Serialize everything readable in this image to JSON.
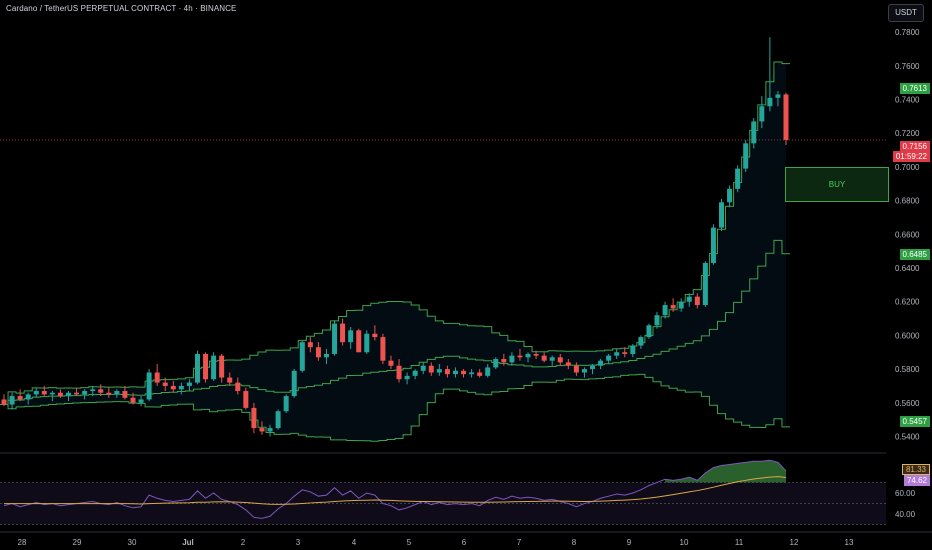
{
  "header": {
    "title": "Cardano / TetherUS PERPETUAL CONTRACT · 4h · BINANCE",
    "currency": "USDT"
  },
  "buy_label": "BUY",
  "price_tags": {
    "upper_band": "0.7613",
    "last_price": "0.7156",
    "countdown": "01:59:22",
    "middle_band": "0.6485",
    "lower_band": "0.5457",
    "rsi_value": "81.33",
    "rsi_ma": "74.62"
  },
  "colors": {
    "up": "#26a69a",
    "down": "#ef5350",
    "band": "#3fa34d",
    "rsi_line": "#7e57c2",
    "rsi_ma": "#d9a94b"
  },
  "chart_data": [
    {
      "type": "candlestick",
      "price_axis_ticks": [
        "0.7800",
        "0.7600",
        "0.7400",
        "0.7200",
        "0.7000",
        "0.6800",
        "0.6600",
        "0.6400",
        "0.6200",
        "0.6000",
        "0.5800",
        "0.5600",
        "0.5400"
      ],
      "ylim": [
        0.532,
        0.786
      ],
      "x_ticks": [
        "28",
        "29",
        "30",
        "Jul",
        "2",
        "3",
        "4",
        "5",
        "6",
        "7",
        "8",
        "9",
        "10",
        "11",
        "12",
        "13"
      ],
      "candles": [
        [
          0.562,
          0.565,
          0.558,
          0.559
        ],
        [
          0.559,
          0.566,
          0.556,
          0.564
        ],
        [
          0.564,
          0.568,
          0.561,
          0.562
        ],
        [
          0.562,
          0.566,
          0.559,
          0.565
        ],
        [
          0.565,
          0.569,
          0.563,
          0.567
        ],
        [
          0.567,
          0.57,
          0.564,
          0.565
        ],
        [
          0.565,
          0.567,
          0.561,
          0.566
        ],
        [
          0.566,
          0.568,
          0.563,
          0.564
        ],
        [
          0.564,
          0.567,
          0.561,
          0.566
        ],
        [
          0.566,
          0.569,
          0.564,
          0.565
        ],
        [
          0.565,
          0.568,
          0.562,
          0.567
        ],
        [
          0.567,
          0.57,
          0.564,
          0.568
        ],
        [
          0.568,
          0.571,
          0.564,
          0.566
        ],
        [
          0.566,
          0.569,
          0.563,
          0.565
        ],
        [
          0.565,
          0.568,
          0.563,
          0.567
        ],
        [
          0.567,
          0.57,
          0.562,
          0.563
        ],
        [
          0.563,
          0.566,
          0.559,
          0.56
        ],
        [
          0.56,
          0.564,
          0.558,
          0.562
        ],
        [
          0.562,
          0.58,
          0.561,
          0.578
        ],
        [
          0.578,
          0.583,
          0.57,
          0.572
        ],
        [
          0.572,
          0.575,
          0.567,
          0.57
        ],
        [
          0.57,
          0.573,
          0.566,
          0.568
        ],
        [
          0.568,
          0.572,
          0.565,
          0.57
        ],
        [
          0.57,
          0.574,
          0.567,
          0.572
        ],
        [
          0.572,
          0.591,
          0.571,
          0.589
        ],
        [
          0.589,
          0.59,
          0.572,
          0.574
        ],
        [
          0.574,
          0.59,
          0.573,
          0.588
        ],
        [
          0.588,
          0.589,
          0.572,
          0.575
        ],
        [
          0.575,
          0.578,
          0.57,
          0.572
        ],
        [
          0.572,
          0.575,
          0.565,
          0.567
        ],
        [
          0.567,
          0.569,
          0.556,
          0.557
        ],
        [
          0.557,
          0.56,
          0.542,
          0.545
        ],
        [
          0.545,
          0.549,
          0.541,
          0.543
        ],
        [
          0.543,
          0.547,
          0.54,
          0.545
        ],
        [
          0.545,
          0.556,
          0.544,
          0.555
        ],
        [
          0.555,
          0.565,
          0.554,
          0.564
        ],
        [
          0.564,
          0.58,
          0.563,
          0.579
        ],
        [
          0.579,
          0.597,
          0.578,
          0.596
        ],
        [
          0.596,
          0.599,
          0.59,
          0.593
        ],
        [
          0.593,
          0.596,
          0.585,
          0.587
        ],
        [
          0.587,
          0.592,
          0.583,
          0.589
        ],
        [
          0.589,
          0.609,
          0.588,
          0.607
        ],
        [
          0.607,
          0.61,
          0.594,
          0.596
        ],
        [
          0.596,
          0.605,
          0.592,
          0.603
        ],
        [
          0.603,
          0.604,
          0.59,
          0.59
        ],
        [
          0.59,
          0.603,
          0.589,
          0.601
        ],
        [
          0.601,
          0.606,
          0.597,
          0.599
        ],
        [
          0.599,
          0.601,
          0.583,
          0.585
        ],
        [
          0.585,
          0.588,
          0.58,
          0.582
        ],
        [
          0.582,
          0.586,
          0.572,
          0.574
        ],
        [
          0.574,
          0.578,
          0.571,
          0.576
        ],
        [
          0.576,
          0.58,
          0.574,
          0.579
        ],
        [
          0.579,
          0.584,
          0.577,
          0.582
        ],
        [
          0.582,
          0.584,
          0.576,
          0.578
        ],
        [
          0.578,
          0.583,
          0.576,
          0.58
        ],
        [
          0.58,
          0.582,
          0.575,
          0.577
        ],
        [
          0.577,
          0.581,
          0.575,
          0.579
        ],
        [
          0.579,
          0.58,
          0.575,
          0.577
        ],
        [
          0.577,
          0.58,
          0.575,
          0.578
        ],
        [
          0.578,
          0.58,
          0.575,
          0.576
        ],
        [
          0.576,
          0.583,
          0.575,
          0.581
        ],
        [
          0.581,
          0.587,
          0.58,
          0.586
        ],
        [
          0.586,
          0.589,
          0.582,
          0.584
        ],
        [
          0.584,
          0.59,
          0.582,
          0.588
        ],
        [
          0.588,
          0.592,
          0.585,
          0.587
        ],
        [
          0.587,
          0.59,
          0.584,
          0.589
        ],
        [
          0.589,
          0.591,
          0.586,
          0.588
        ],
        [
          0.588,
          0.59,
          0.584,
          0.585
        ],
        [
          0.585,
          0.588,
          0.582,
          0.587
        ],
        [
          0.587,
          0.589,
          0.582,
          0.584
        ],
        [
          0.584,
          0.586,
          0.58,
          0.582
        ],
        [
          0.582,
          0.584,
          0.576,
          0.578
        ],
        [
          0.578,
          0.581,
          0.575,
          0.58
        ],
        [
          0.58,
          0.583,
          0.577,
          0.582
        ],
        [
          0.582,
          0.586,
          0.58,
          0.585
        ],
        [
          0.585,
          0.589,
          0.583,
          0.588
        ],
        [
          0.588,
          0.592,
          0.586,
          0.59
        ],
        [
          0.59,
          0.593,
          0.587,
          0.589
        ],
        [
          0.589,
          0.595,
          0.587,
          0.594
        ],
        [
          0.594,
          0.6,
          0.592,
          0.599
        ],
        [
          0.599,
          0.607,
          0.598,
          0.606
        ],
        [
          0.606,
          0.614,
          0.604,
          0.612
        ],
        [
          0.612,
          0.62,
          0.61,
          0.618
        ],
        [
          0.618,
          0.622,
          0.614,
          0.616
        ],
        [
          0.616,
          0.622,
          0.614,
          0.62
        ],
        [
          0.62,
          0.625,
          0.617,
          0.623
        ],
        [
          0.623,
          0.625,
          0.616,
          0.618
        ],
        [
          0.618,
          0.644,
          0.617,
          0.643
        ],
        [
          0.643,
          0.666,
          0.642,
          0.664
        ],
        [
          0.664,
          0.681,
          0.662,
          0.679
        ],
        [
          0.679,
          0.689,
          0.676,
          0.687
        ],
        [
          0.687,
          0.701,
          0.685,
          0.699
        ],
        [
          0.699,
          0.716,
          0.697,
          0.714
        ],
        [
          0.714,
          0.729,
          0.711,
          0.727
        ],
        [
          0.727,
          0.742,
          0.723,
          0.736
        ],
        [
          0.736,
          0.777,
          0.733,
          0.741
        ],
        [
          0.741,
          0.745,
          0.736,
          0.743
        ],
        [
          0.743,
          0.744,
          0.713,
          0.716
        ]
      ],
      "bollinger_upper_end": 0.7613,
      "bollinger_middle_end": 0.6485,
      "bollinger_lower_end": 0.5457
    },
    {
      "type": "line",
      "name": "RSI",
      "ticks": [
        "60.00",
        "40.00"
      ],
      "ylim": [
        25,
        95
      ],
      "rsi": [
        48,
        50,
        47,
        49,
        51,
        49,
        50,
        48,
        49,
        50,
        51,
        52,
        50,
        49,
        51,
        48,
        46,
        47,
        58,
        55,
        53,
        52,
        53,
        54,
        62,
        55,
        60,
        54,
        52,
        49,
        44,
        37,
        36,
        38,
        45,
        50,
        57,
        63,
        61,
        57,
        58,
        65,
        58,
        62,
        55,
        60,
        58,
        50,
        48,
        44,
        46,
        49,
        52,
        49,
        51,
        49,
        50,
        49,
        50,
        48,
        53,
        56,
        54,
        57,
        55,
        56,
        55,
        53,
        54,
        52,
        50,
        47,
        50,
        52,
        55,
        57,
        59,
        58,
        60,
        63,
        67,
        70,
        73,
        72,
        73,
        75,
        72,
        79,
        84,
        86,
        87,
        88,
        89,
        90,
        90,
        91,
        89,
        81
      ],
      "rsi_ma": [
        50,
        50,
        50,
        50,
        50,
        50,
        50,
        50,
        50,
        50,
        50,
        50,
        50,
        50,
        50,
        50,
        49.8,
        49.6,
        50,
        50.2,
        50.4,
        50.5,
        50.6,
        50.8,
        51.2,
        51.3,
        51.6,
        51.7,
        51.6,
        51.4,
        51,
        50.4,
        49.8,
        49.4,
        49.2,
        49.3,
        49.6,
        50.1,
        50.6,
        51,
        51.4,
        52,
        52.4,
        52.8,
        53,
        53.2,
        53.4,
        53.2,
        53,
        52.6,
        52.3,
        52.1,
        52,
        51.8,
        51.7,
        51.6,
        51.5,
        51.4,
        51.3,
        51.2,
        51.3,
        51.4,
        51.5,
        51.7,
        51.8,
        52,
        52.1,
        52.2,
        52.3,
        52.3,
        52.2,
        52.1,
        52,
        52.1,
        52.3,
        52.6,
        53,
        53.3,
        53.7,
        54.3,
        55.1,
        56.1,
        57.3,
        58.5,
        59.8,
        61.1,
        62.3,
        63.8,
        65.5,
        67.3,
        69,
        70.6,
        72,
        73.2,
        74.2,
        75,
        75.5,
        74.62
      ]
    }
  ]
}
